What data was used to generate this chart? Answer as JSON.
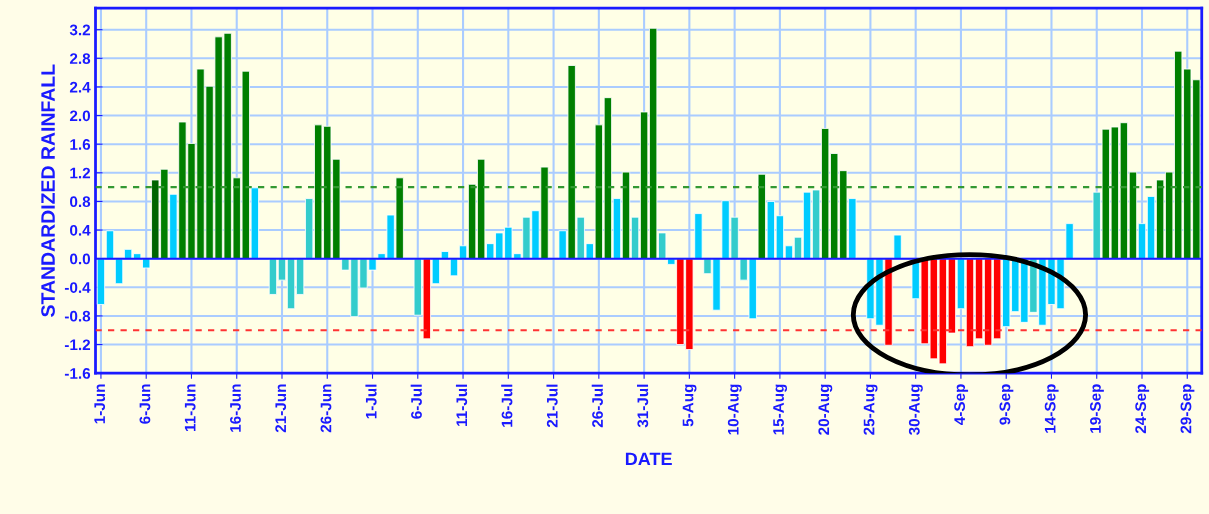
{
  "chart_data": {
    "type": "bar",
    "xlabel": "DATE",
    "ylabel": "STANDARDIZED RAINFALL",
    "categories": [
      "1-Jun",
      null,
      null,
      null,
      null,
      "6-Jun",
      null,
      null,
      null,
      null,
      "11-Jun",
      null,
      null,
      null,
      null,
      "16-Jun",
      null,
      null,
      null,
      null,
      "21-Jun",
      null,
      null,
      null,
      null,
      "26-Jun",
      null,
      null,
      null,
      null,
      "1-Jul",
      null,
      null,
      null,
      null,
      "6-Jul",
      null,
      null,
      null,
      null,
      "11-Jul",
      null,
      null,
      null,
      null,
      "16-Jul",
      null,
      null,
      null,
      null,
      "21-Jul",
      null,
      null,
      null,
      null,
      "26-Jul",
      null,
      null,
      null,
      null,
      "31-Jul",
      null,
      null,
      null,
      null,
      "5-Aug",
      null,
      null,
      null,
      null,
      "10-Aug",
      null,
      null,
      null,
      null,
      "15-Aug",
      null,
      null,
      null,
      null,
      "20-Aug",
      null,
      null,
      null,
      null,
      "25-Aug",
      null,
      null,
      null,
      null,
      "30-Aug",
      null,
      null,
      null,
      null,
      "4-Sep",
      null,
      null,
      null,
      null,
      "9-Sep",
      null,
      null,
      null,
      null,
      "14-Sep",
      null,
      null,
      null,
      null,
      "19-Sep",
      null,
      null,
      null,
      null,
      "24-Sep",
      null,
      null,
      null,
      null,
      "29-Sep",
      null
    ],
    "values": [
      -0.64,
      0.39,
      -0.35,
      0.13,
      0.07,
      -0.13,
      1.1,
      1.25,
      0.9,
      1.91,
      1.61,
      2.65,
      2.41,
      3.1,
      3.15,
      1.13,
      2.62,
      0.99,
      null,
      -0.5,
      -0.3,
      -0.7,
      -0.5,
      0.84,
      1.87,
      1.85,
      1.39,
      -0.16,
      -0.81,
      -0.41,
      -0.16,
      0.07,
      0.61,
      1.13,
      null,
      -0.79,
      -1.12,
      -0.35,
      0.1,
      -0.24,
      0.18,
      1.04,
      1.39,
      0.21,
      0.36,
      0.44,
      0.07,
      0.58,
      0.67,
      1.28,
      null,
      0.39,
      2.7,
      0.58,
      0.21,
      1.87,
      2.25,
      0.84,
      1.21,
      0.58,
      2.05,
      3.22,
      0.36,
      -0.08,
      -1.2,
      -1.27,
      0.63,
      -0.21,
      -0.72,
      0.81,
      0.58,
      -0.3,
      -0.84,
      1.18,
      0.8,
      0.6,
      0.18,
      0.3,
      0.93,
      0.96,
      1.82,
      1.47,
      1.23,
      0.84,
      null,
      -0.84,
      -0.93,
      -1.21,
      0.33,
      null,
      -0.56,
      -1.19,
      -1.4,
      -1.47,
      -1.04,
      -0.7,
      -1.23,
      -1.12,
      -1.21,
      -1.12,
      -0.95,
      -0.74,
      -0.89,
      -0.75,
      -0.93,
      -0.64,
      -0.7,
      0.49,
      null,
      null,
      0.93,
      1.81,
      1.84,
      1.9,
      1.21,
      0.49,
      0.87,
      1.1,
      1.21,
      2.9,
      2.65,
      2.5
    ],
    "colors": [
      "#00ccff",
      "#00ccff",
      "#00ccff",
      "#00ccff",
      "#00ccff",
      "#00ccff",
      "#006400",
      "#007f00",
      "#00ccff",
      "#007f00",
      "#007f00",
      "#007f00",
      "#007f00",
      "#007f00",
      "#007f00",
      "#007f00",
      "#007f00",
      "#00ccff",
      "#00ccff",
      "#33cccc",
      "#33cccc",
      "#33cccc",
      "#33cccc",
      "#33cccc",
      "#007f00",
      "#007f00",
      "#007f00",
      "#33cccc",
      "#33cccc",
      "#33cccc",
      "#00ccff",
      "#00ccff",
      "#00ccff",
      "#007f00",
      "#00ccff",
      "#33cccc",
      "#ff0000",
      "#00ccff",
      "#00ccff",
      "#00ccff",
      "#00ccff",
      "#007f00",
      "#007f00",
      "#00ccff",
      "#00ccff",
      "#00ccff",
      "#00ccff",
      "#33cccc",
      "#00ccff",
      "#007f00",
      "#00ccff",
      "#00ccff",
      "#007f00",
      "#33cccc",
      "#00ccff",
      "#007f00",
      "#007f00",
      "#00ccff",
      "#007f00",
      "#33cccc",
      "#007f00",
      "#007f00",
      "#33cccc",
      "#00ccff",
      "#ff0000",
      "#ff0000",
      "#00ccff",
      "#33cccc",
      "#00ccff",
      "#00ccff",
      "#33cccc",
      "#33cccc",
      "#00ccff",
      "#007f00",
      "#00ccff",
      "#00ccff",
      "#00ccff",
      "#33cccc",
      "#00ccff",
      "#33cccc",
      "#007f00",
      "#007f00",
      "#007f00",
      "#00ccff",
      "#00ccff",
      "#00ccff",
      "#00ccff",
      "#ff0000",
      "#00ccff",
      "#00ccff",
      "#00ccff",
      "#ff0000",
      "#ff0000",
      "#ff0000",
      "#ff0000",
      "#00ccff",
      "#ff0000",
      "#ff0000",
      "#ff0000",
      "#ff0000",
      "#00ccff",
      "#00ccff",
      "#00ccff",
      "#33cccc",
      "#00ccff",
      "#00ccff",
      "#00ccff",
      "#00ccff",
      "#00ccff",
      "#00ccff",
      "#33cccc",
      "#007f00",
      "#007f00",
      "#007f00",
      "#007f00",
      "#00ccff",
      "#00ccff",
      "#007f00",
      "#007f00",
      "#007f00",
      "#007f00",
      "#007f00"
    ],
    "ylim": [
      -1.6,
      3.5
    ],
    "yticks": [
      -1.6,
      -1.2,
      -0.8,
      -0.4,
      {
        "value": 0,
        "label": "0.0"
      },
      0.4,
      0.8,
      1.2,
      1.6,
      {
        "value": 2,
        "label": "2.0"
      },
      2.4,
      2.8,
      3.2
    ],
    "ref_lines": [
      {
        "axis": "y",
        "value": 0,
        "label": null,
        "color": "#1a1aff",
        "line_style": "solid"
      },
      {
        "axis": "y",
        "value": 1.0,
        "label": null,
        "color": "#339933",
        "line_style": "dashed"
      },
      {
        "axis": "y",
        "value": -1.0,
        "label": null,
        "color": "#ff3333",
        "line_style": "dashed"
      }
    ],
    "grid": true
  }
}
